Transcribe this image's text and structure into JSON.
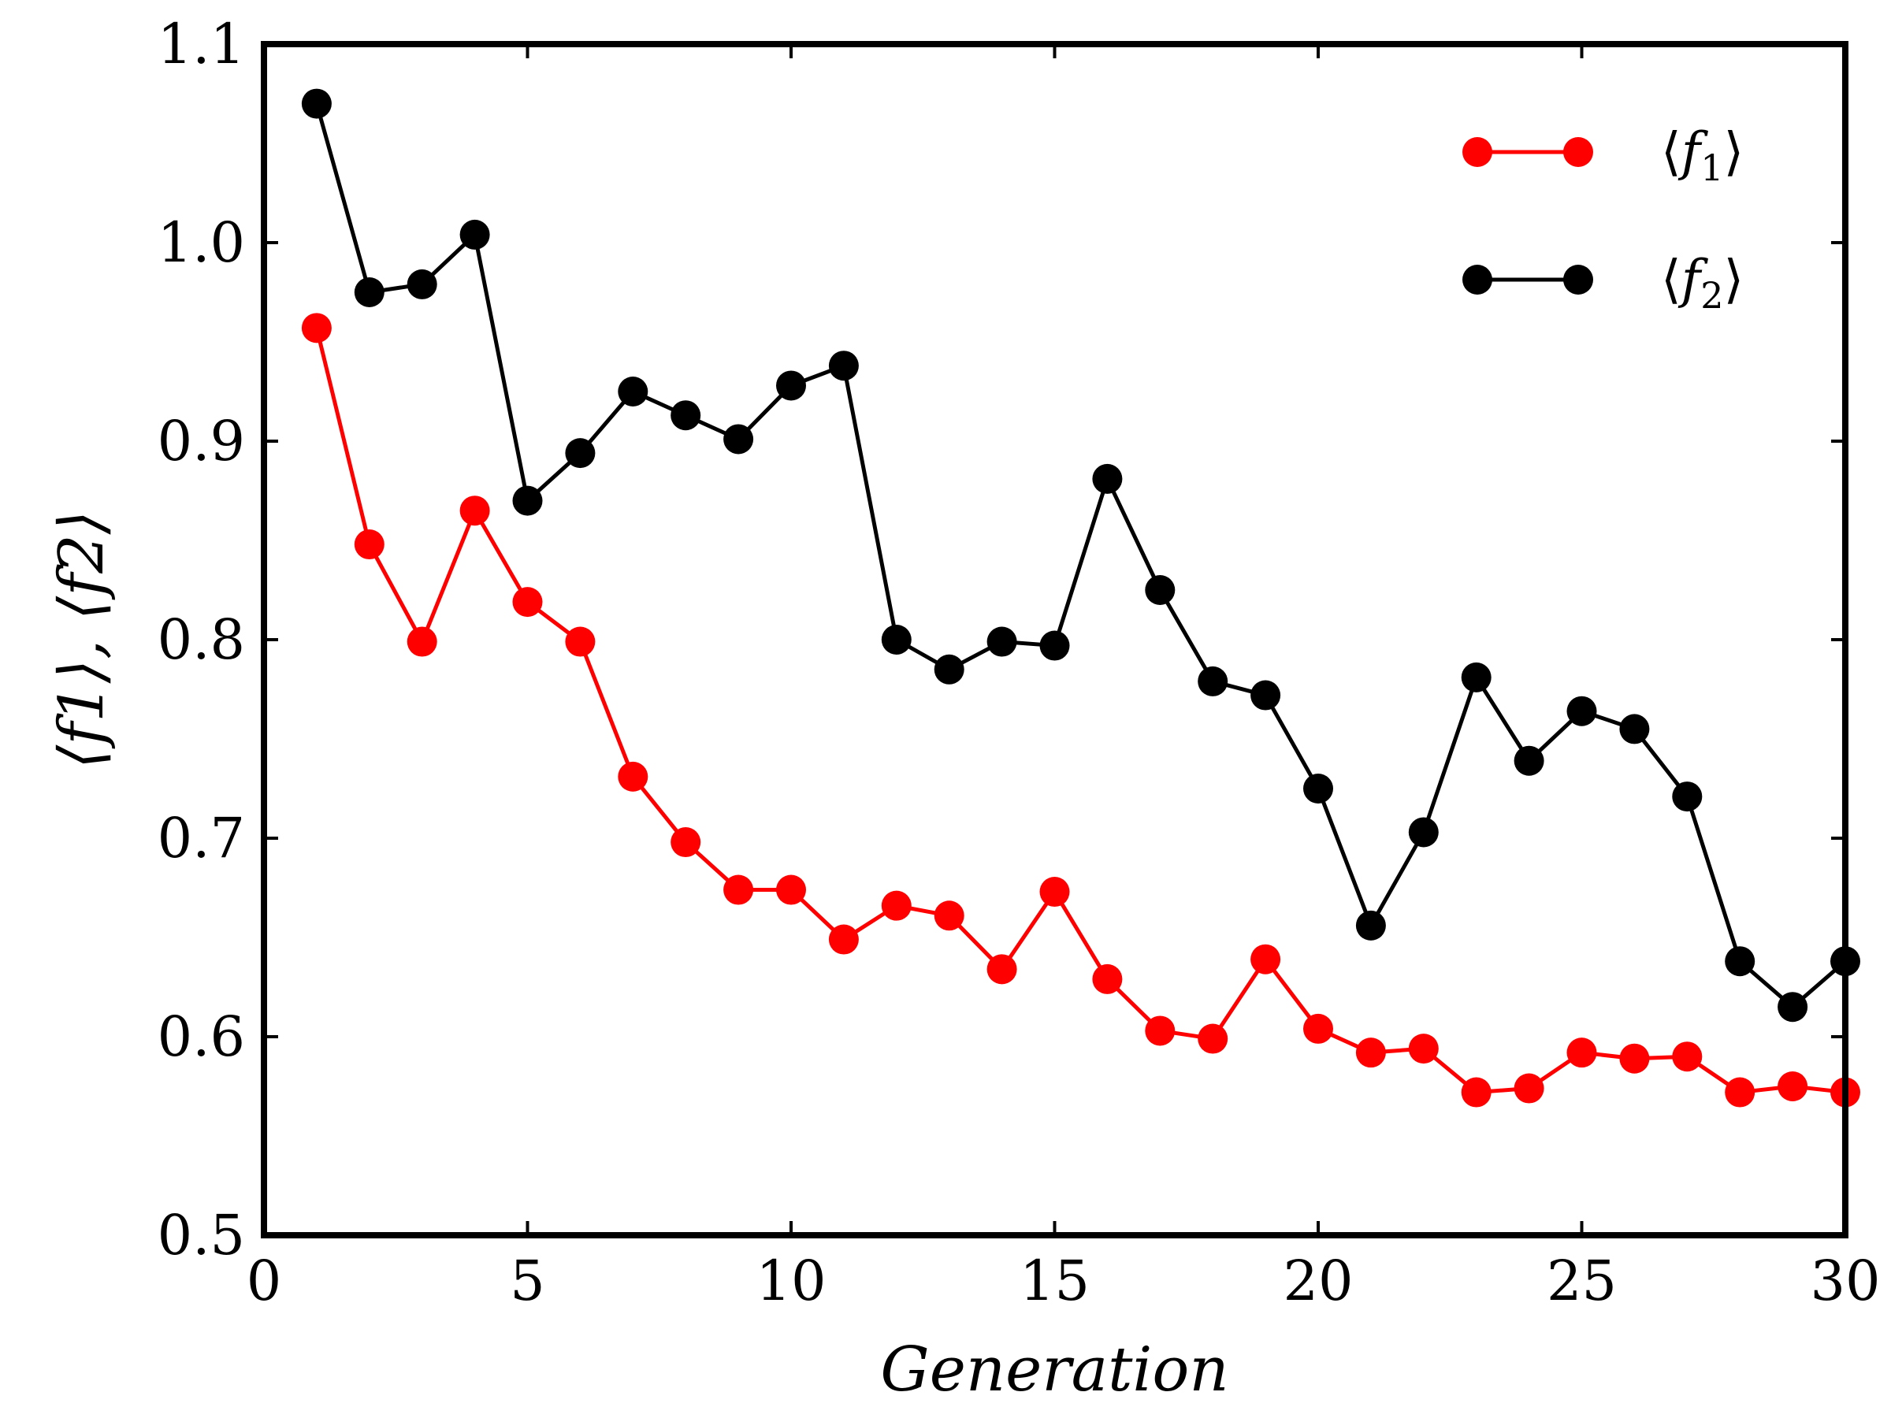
{
  "chart_data": {
    "type": "line",
    "title": "",
    "xlabel": "Generation",
    "ylabel": "⟨f1⟩, ⟨f2⟩",
    "xlim": [
      0,
      30
    ],
    "ylim": [
      0.5,
      1.1
    ],
    "xticks": [
      "0",
      "5",
      "10",
      "15",
      "20",
      "25",
      "30"
    ],
    "yticks": [
      "0.5",
      "0.6",
      "0.7",
      "0.8",
      "0.9",
      "1.0",
      "1.1"
    ],
    "legend_position": "top-right",
    "series": [
      {
        "name": "⟨f1⟩",
        "label_letter": "f",
        "label_sub": "1",
        "color": "#ff0000",
        "x": [
          1,
          2,
          3,
          4,
          5,
          6,
          7,
          8,
          9,
          10,
          11,
          12,
          13,
          14,
          15,
          16,
          17,
          18,
          19,
          20,
          21,
          22,
          23,
          24,
          25,
          26,
          27,
          28,
          29,
          30
        ],
        "values": [
          0.957,
          0.848,
          0.799,
          0.865,
          0.819,
          0.799,
          0.731,
          0.698,
          0.674,
          0.674,
          0.649,
          0.666,
          0.661,
          0.634,
          0.673,
          0.629,
          0.603,
          0.599,
          0.639,
          0.604,
          0.592,
          0.594,
          0.572,
          0.574,
          0.592,
          0.589,
          0.59,
          0.572,
          0.575,
          0.572
        ]
      },
      {
        "name": "⟨f2⟩",
        "label_letter": "f",
        "label_sub": "2",
        "color": "#000000",
        "x": [
          1,
          2,
          3,
          4,
          5,
          6,
          7,
          8,
          9,
          10,
          11,
          12,
          13,
          14,
          15,
          16,
          17,
          18,
          19,
          20,
          21,
          22,
          23,
          24,
          25,
          26,
          27,
          28,
          29,
          30
        ],
        "values": [
          1.07,
          0.975,
          0.979,
          1.004,
          0.87,
          0.894,
          0.925,
          0.913,
          0.901,
          0.928,
          0.938,
          0.8,
          0.785,
          0.799,
          0.797,
          0.881,
          0.825,
          0.779,
          0.772,
          0.725,
          0.656,
          0.703,
          0.781,
          0.739,
          0.764,
          0.755,
          0.721,
          0.638,
          0.615,
          0.638
        ]
      }
    ]
  }
}
